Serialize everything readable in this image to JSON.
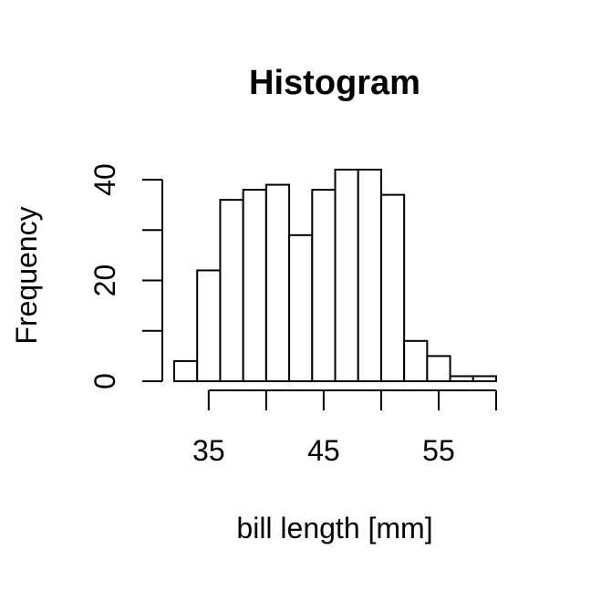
{
  "chart_data": {
    "type": "bar",
    "title": "Histogram",
    "xlabel": "bill length [mm]",
    "ylabel": "Frequency",
    "bins": [
      {
        "x0": 32,
        "x1": 34,
        "count": 4
      },
      {
        "x0": 34,
        "x1": 36,
        "count": 22
      },
      {
        "x0": 36,
        "x1": 38,
        "count": 36
      },
      {
        "x0": 38,
        "x1": 40,
        "count": 38
      },
      {
        "x0": 40,
        "x1": 42,
        "count": 39
      },
      {
        "x0": 42,
        "x1": 44,
        "count": 29
      },
      {
        "x0": 44,
        "x1": 46,
        "count": 38
      },
      {
        "x0": 46,
        "x1": 48,
        "count": 42
      },
      {
        "x0": 48,
        "x1": 50,
        "count": 42
      },
      {
        "x0": 50,
        "x1": 52,
        "count": 37
      },
      {
        "x0": 52,
        "x1": 54,
        "count": 8
      },
      {
        "x0": 54,
        "x1": 56,
        "count": 5
      },
      {
        "x0": 56,
        "x1": 58,
        "count": 1
      },
      {
        "x0": 58,
        "x1": 60,
        "count": 1
      }
    ],
    "xlim": [
      32,
      60
    ],
    "ylim": [
      0,
      42
    ],
    "x_ticks": [
      35,
      40,
      45,
      50,
      55,
      60
    ],
    "x_tick_labels": [
      "35",
      "45",
      "55"
    ],
    "y_ticks": [
      0,
      10,
      20,
      30,
      40
    ],
    "y_tick_labels": [
      "0",
      "20",
      "40"
    ],
    "grid": false,
    "colors": {
      "bar_fill": "#ffffff",
      "bar_stroke": "#000000"
    }
  }
}
